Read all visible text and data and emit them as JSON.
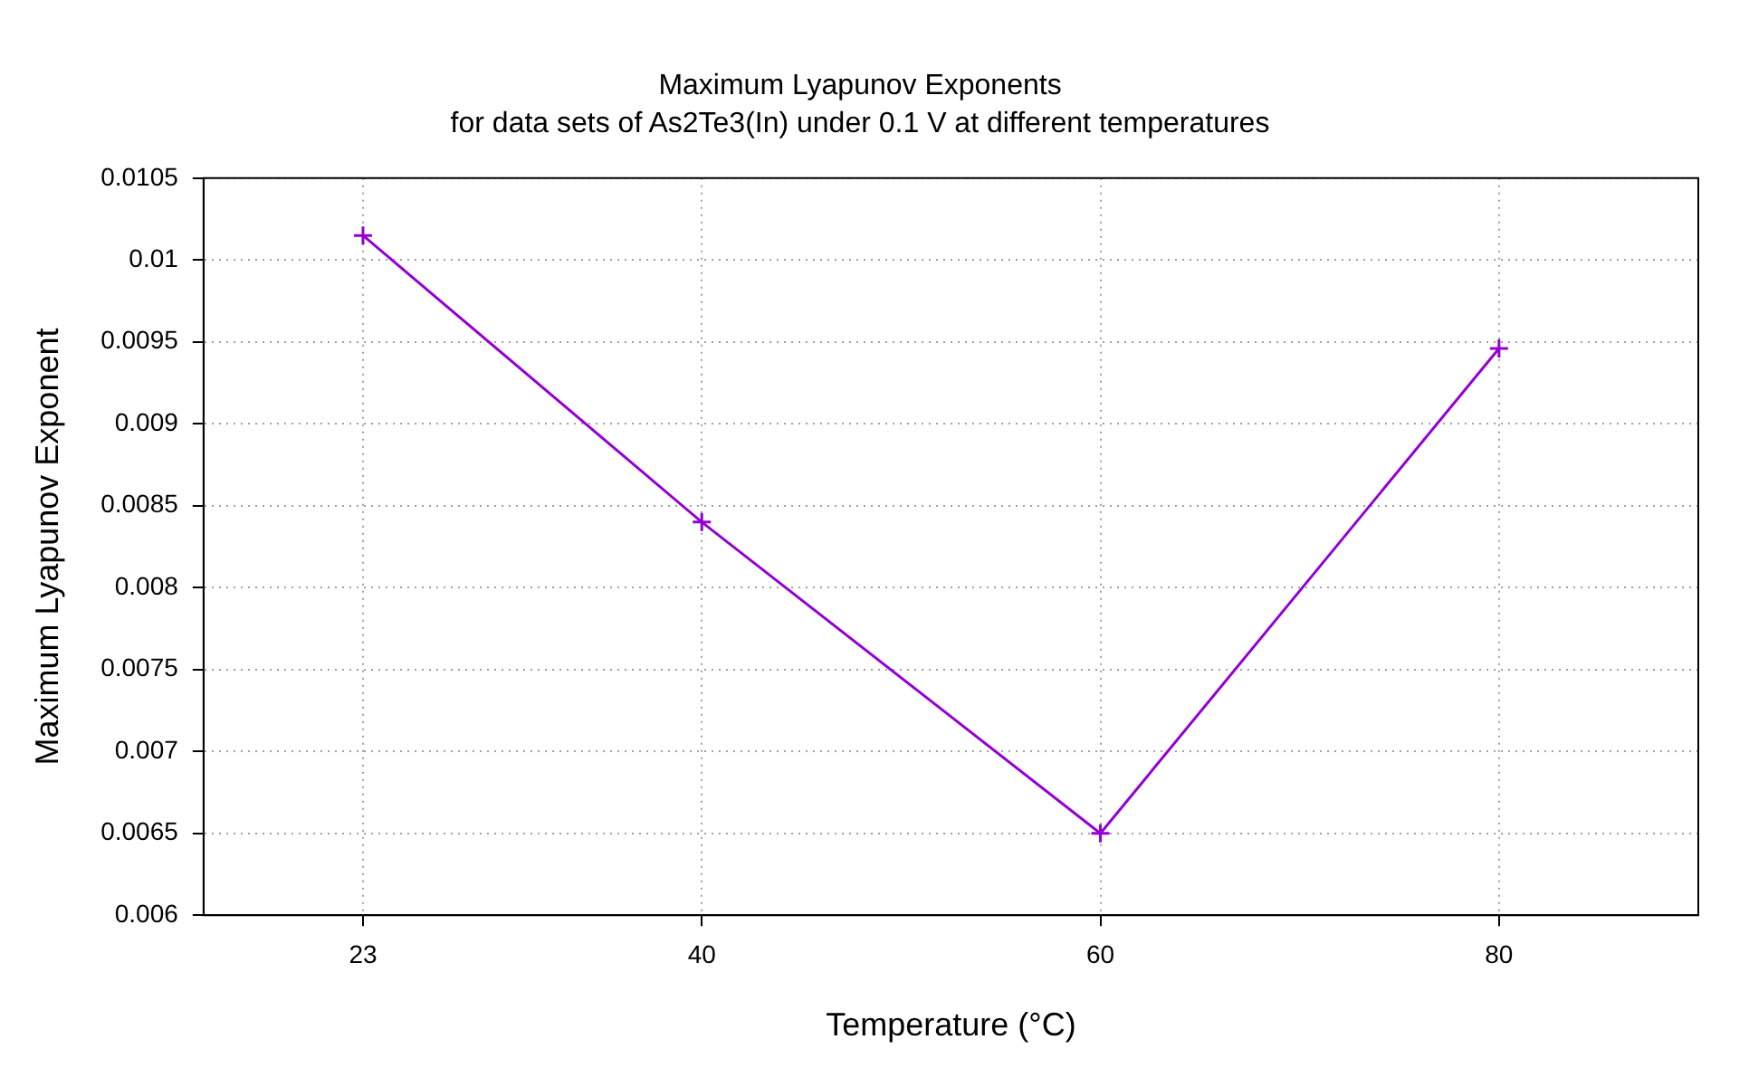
{
  "chart_data": {
    "type": "line",
    "title": "Maximum Lyapunov Exponents",
    "subtitle": "for data sets of As2Te3(In) under 0.1 V at different temperatures",
    "xlabel": "Temperature (°C)",
    "ylabel": "Maximum Lyapunov Exponent",
    "x": [
      23,
      40,
      60,
      80
    ],
    "series": [
      {
        "color": "#9400d3",
        "values": [
          0.01015,
          0.0084,
          0.0065,
          0.00946
        ]
      }
    ],
    "xlim": [
      15,
      90
    ],
    "xticks": [
      23,
      40,
      60,
      80
    ],
    "ylim": [
      0.006,
      0.0105
    ],
    "yticks": [
      0.006,
      0.0065,
      0.007,
      0.0075,
      0.008,
      0.0085,
      0.009,
      0.0095,
      0.01,
      0.0105
    ],
    "grid": true,
    "legend": false,
    "marker": "cross",
    "line_style": "solid"
  }
}
